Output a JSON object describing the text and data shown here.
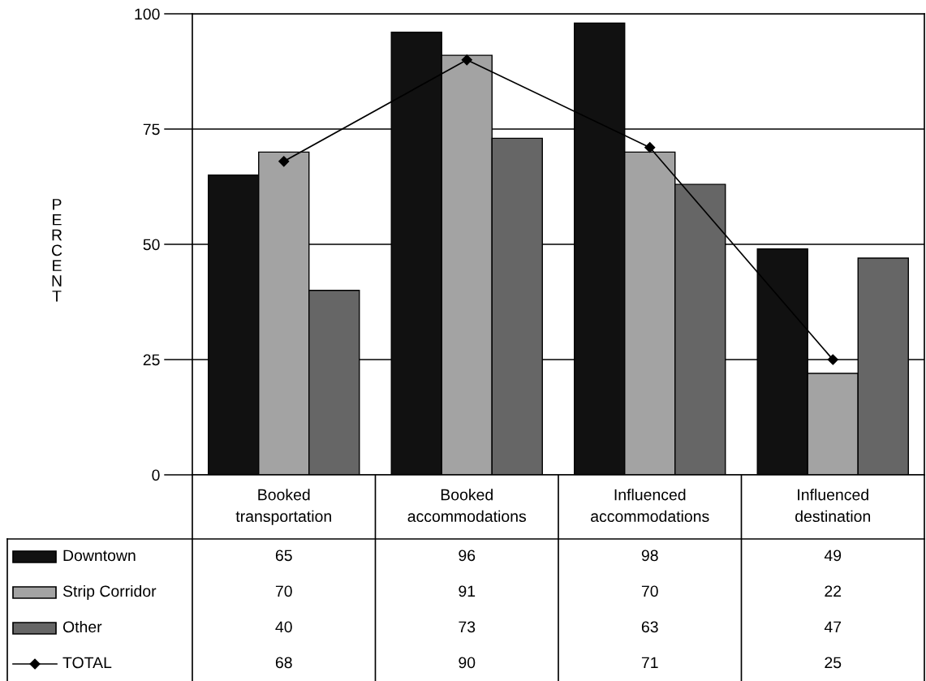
{
  "chart_data": {
    "type": "bar",
    "ylabel": "PERCENT",
    "categories": [
      "Booked\ntransportation",
      "Booked\naccommodations",
      "Influenced\naccommodations",
      "Influenced\ndestination"
    ],
    "series": [
      {
        "name": "Downtown",
        "color": "#111111",
        "values": [
          65,
          96,
          98,
          49
        ]
      },
      {
        "name": "Strip Corridor",
        "color": "#a3a3a3",
        "values": [
          70,
          91,
          70,
          22
        ]
      },
      {
        "name": "Other",
        "color": "#666666",
        "values": [
          40,
          73,
          63,
          47
        ]
      },
      {
        "name": "TOTAL",
        "type": "line",
        "color": "#000000",
        "marker": "diamond",
        "line_style": "solid",
        "values": [
          68,
          90,
          71,
          25
        ]
      }
    ],
    "ylim": [
      0,
      100
    ],
    "yticks": [
      0,
      25,
      50,
      75,
      100
    ],
    "grid": "y",
    "data_labels": true,
    "legend": "bottom"
  }
}
